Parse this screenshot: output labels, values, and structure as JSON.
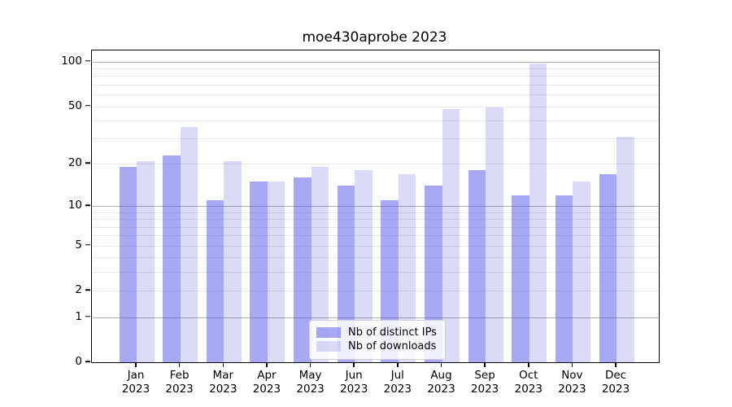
{
  "chart_data": {
    "type": "bar",
    "title": "moe430aprobe 2023",
    "xlabel": "",
    "ylabel": "",
    "categories": [
      "Jan 2023",
      "Feb 2023",
      "Mar 2023",
      "Apr 2023",
      "May 2023",
      "Jun 2023",
      "Jul 2023",
      "Aug 2023",
      "Sep 2023",
      "Oct 2023",
      "Nov 2023",
      "Dec 2023"
    ],
    "series": [
      {
        "name": "Nb of distinct IPs",
        "color": "#a5a5f1",
        "fill_rgba": "rgba(88,88,235,0.52)",
        "values": [
          19,
          23,
          11,
          15,
          16,
          14,
          11,
          14,
          18,
          12,
          12,
          17
        ]
      },
      {
        "name": "Nb of downloads",
        "color": "#dbdbf8",
        "fill_rgba": "rgba(75,75,220,0.2)",
        "values": [
          21,
          36,
          21,
          15,
          19,
          18,
          17,
          48,
          49,
          97,
          15,
          31
        ]
      }
    ],
    "yscale": "log1p",
    "ylim": [
      0,
      119
    ],
    "yticks": [
      0,
      1,
      2,
      5,
      10,
      20,
      50,
      100
    ],
    "grid": {
      "on": true,
      "major": [
        1,
        10,
        100
      ],
      "minor": [
        2,
        3,
        4,
        5,
        6,
        7,
        8,
        9,
        20,
        30,
        40,
        50,
        60,
        70,
        80,
        90
      ],
      "major_color": "#b0b0b0",
      "minor_color": "#e8e8e8"
    },
    "legend": {
      "position": "lower center",
      "entries": [
        "Nb of distinct IPs",
        "Nb of downloads"
      ]
    }
  }
}
